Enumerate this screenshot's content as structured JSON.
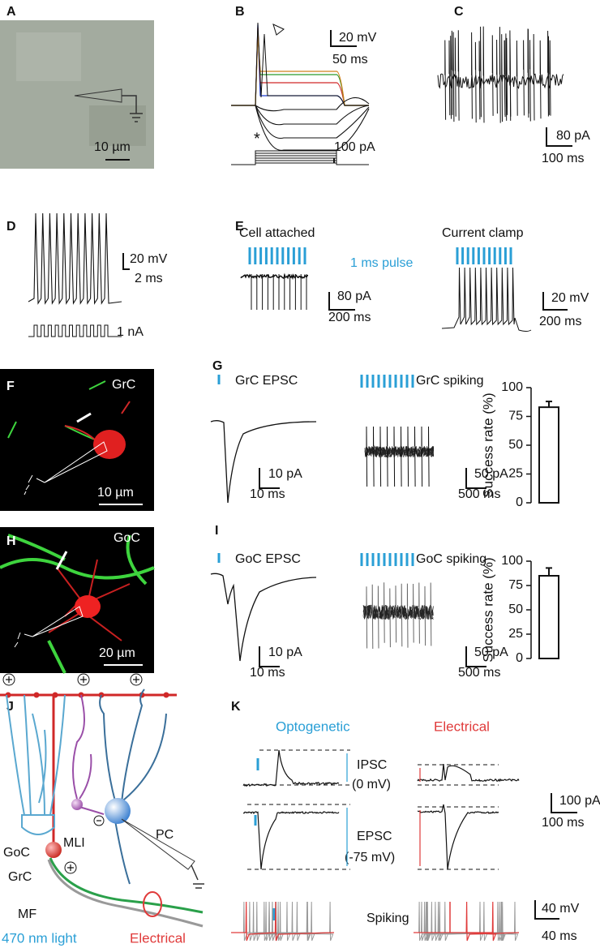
{
  "A": {
    "label": "A",
    "scale": "10 µm"
  },
  "B": {
    "label": "B",
    "scale_v": "20 mV",
    "scale_t": "50 ms",
    "scale_i": "100 pA",
    "marker": "*"
  },
  "C": {
    "label": "C",
    "scale_i": "80 pA",
    "scale_t": "100 ms"
  },
  "D": {
    "label": "D",
    "scale_v": "20 mV",
    "scale_t": "2 ms",
    "scale_i": "1 nA"
  },
  "E": {
    "label": "E",
    "left_title": "Cell attached",
    "pulse": "1 ms pulse",
    "right_title": "Current clamp",
    "left_scale_i": "80 pA",
    "left_scale_t": "200 ms",
    "right_scale_v": "20 mV",
    "right_scale_t": "200 ms"
  },
  "F": {
    "label": "F",
    "cell": "GrC",
    "scale": "10 µm"
  },
  "G": {
    "label": "G",
    "epsc": "GrC EPSC",
    "epsc_scale_i": "10 pA",
    "epsc_scale_t": "10 ms",
    "spiking": "GrC spiking",
    "spiking_scale_i": "50 pA",
    "spiking_scale_t": "500 ms",
    "chart": {
      "ylabel": "Success rate (%)",
      "ylim": [
        0,
        100
      ],
      "yticks": [
        0,
        25,
        50,
        75,
        100
      ],
      "values": [
        83
      ],
      "errors": [
        5
      ]
    }
  },
  "H": {
    "label": "H",
    "cell": "GoC",
    "scale": "20 µm"
  },
  "I": {
    "label": "I",
    "epsc": "GoC EPSC",
    "epsc_scale_i": "10 pA",
    "epsc_scale_t": "10 ms",
    "spiking": "GoC spiking",
    "spiking_scale_i": "50 pA",
    "spiking_scale_t": "500 ms",
    "chart": {
      "ylabel": "Success rate (%)",
      "ylim": [
        0,
        100
      ],
      "yticks": [
        0,
        25,
        50,
        75,
        100
      ],
      "values": [
        85
      ],
      "errors": [
        8
      ]
    }
  },
  "J": {
    "label": "J",
    "goc": "GoC",
    "mli": "MLI",
    "pc": "PC",
    "grc": "GrC",
    "mf": "MF",
    "light": "470 nm light",
    "electrical": "Electrical"
  },
  "K": {
    "label": "K",
    "optogenetic": "Optogenetic",
    "electrical": "Electrical",
    "ipsc": "IPSC",
    "ipsc_hold": "(0 mV)",
    "epsc": "EPSC",
    "epsc_hold": "(-75 mV)",
    "spiking": "Spiking",
    "scale_i": "100 pA",
    "scale_t1": "100 ms",
    "scale_v": "40 mV",
    "scale_t2": "40 ms"
  }
}
